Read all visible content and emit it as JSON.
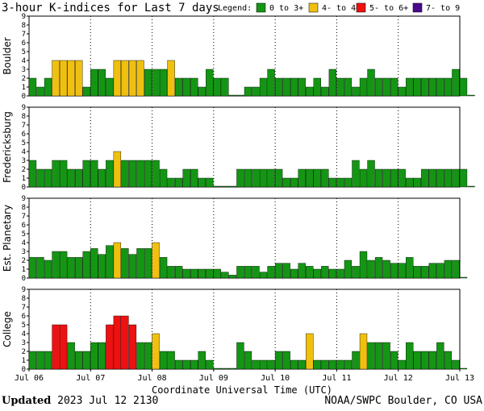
{
  "header": {
    "title": "3-hour K-indices for Last 7 days",
    "legend_label": "Legend:"
  },
  "legend": [
    {
      "label": "0 to 3+",
      "color": "#149614"
    },
    {
      "label": "4- to 4+",
      "color": "#f0c010"
    },
    {
      "label": "5- to 6+",
      "color": "#ee1111"
    },
    {
      "label": "7- to 9",
      "color": "#4b0a8c"
    }
  ],
  "footer": {
    "updated_word": "Updated",
    "updated_value": "2023 Jul 12 2130",
    "source": "NOAA/SWPC Boulder, CO USA"
  },
  "chart_data": [
    {
      "type": "bar",
      "panel": "Boulder",
      "ylabel": "Boulder",
      "ylim": [
        0,
        9
      ],
      "yticks": [
        "0",
        "1",
        "2",
        "3",
        "4",
        "5",
        "6",
        "7",
        "8",
        "9"
      ],
      "xlabel": "Coordinate Universal Time (UTC)",
      "xticks": [
        "Jul 06",
        "Jul 07",
        "Jul 08",
        "Jul 09",
        "Jul 10",
        "Jul 11",
        "Jul 12",
        "Jul 13"
      ],
      "values": [
        2,
        1,
        2,
        4,
        4,
        4,
        4,
        1,
        3,
        3,
        2,
        4,
        4,
        4,
        4,
        3,
        3,
        3,
        4,
        2,
        2,
        2,
        1,
        3,
        2,
        2,
        0,
        0,
        1,
        1,
        2,
        3,
        2,
        2,
        2,
        2,
        1,
        2,
        1,
        3,
        2,
        2,
        1,
        2,
        3,
        2,
        2,
        2,
        1,
        2,
        2,
        2,
        2,
        2,
        2,
        3,
        2,
        0
      ]
    },
    {
      "type": "bar",
      "panel": "Fredericksburg",
      "ylabel": "Fredericksburg",
      "ylim": [
        0,
        9
      ],
      "yticks": [
        "0",
        "1",
        "2",
        "3",
        "4",
        "5",
        "6",
        "7",
        "8",
        "9"
      ],
      "xlabel": "Coordinate Universal Time (UTC)",
      "xticks": [
        "Jul 06",
        "Jul 07",
        "Jul 08",
        "Jul 09",
        "Jul 10",
        "Jul 11",
        "Jul 12",
        "Jul 13"
      ],
      "values": [
        3,
        2,
        2,
        3,
        3,
        2,
        2,
        3,
        3,
        2,
        3,
        4,
        3,
        3,
        3,
        3,
        3,
        2,
        1,
        1,
        2,
        2,
        1,
        1,
        0,
        0,
        0,
        2,
        2,
        2,
        2,
        2,
        2,
        1,
        1,
        2,
        2,
        2,
        2,
        1,
        1,
        1,
        3,
        2,
        3,
        2,
        2,
        2,
        2,
        1,
        1,
        2,
        2,
        2,
        2,
        2,
        2,
        0
      ]
    },
    {
      "type": "bar",
      "panel": "Est. Planetary",
      "ylabel": "Est. Planetary",
      "ylim": [
        0,
        9
      ],
      "yticks": [
        "0",
        "1",
        "2",
        "3",
        "4",
        "5",
        "6",
        "7",
        "8",
        "9"
      ],
      "xlabel": "Coordinate Universal Time (UTC)",
      "xticks": [
        "Jul 06",
        "Jul 07",
        "Jul 08",
        "Jul 09",
        "Jul 10",
        "Jul 11",
        "Jul 12",
        "Jul 13"
      ],
      "values": [
        2.33,
        2.33,
        2,
        3,
        3,
        2.33,
        2.33,
        3,
        3.33,
        2.67,
        3.67,
        4,
        3.33,
        2.67,
        3.33,
        3.33,
        4,
        2.33,
        1.33,
        1.33,
        1,
        1,
        1,
        1,
        1,
        0.67,
        0.33,
        1.33,
        1.33,
        1.33,
        0.67,
        1.33,
        1.67,
        1.67,
        1,
        1.67,
        1.33,
        1,
        1.33,
        1,
        1,
        2,
        1.33,
        3,
        2,
        2.33,
        2,
        1.67,
        1.67,
        2.33,
        1.33,
        1.33,
        1.67,
        1.67,
        2,
        2,
        0
      ]
    },
    {
      "type": "bar",
      "panel": "College",
      "ylabel": "College",
      "ylim": [
        0,
        9
      ],
      "yticks": [
        "0",
        "1",
        "2",
        "3",
        "4",
        "5",
        "6",
        "7",
        "8",
        "9"
      ],
      "xlabel": "Coordinate Universal Time (UTC)",
      "xticks": [
        "Jul 06",
        "Jul 07",
        "Jul 08",
        "Jul 09",
        "Jul 10",
        "Jul 11",
        "Jul 12",
        "Jul 13"
      ],
      "values": [
        2,
        2,
        2,
        5,
        5,
        3,
        2,
        2,
        3,
        3,
        5,
        6,
        6,
        5,
        3,
        3,
        4,
        2,
        2,
        1,
        1,
        1,
        2,
        1,
        0,
        0,
        0,
        3,
        2,
        1,
        1,
        1,
        2,
        2,
        1,
        1,
        4,
        1,
        1,
        1,
        1,
        1,
        2,
        4,
        3,
        3,
        3,
        2,
        1,
        3,
        2,
        2,
        2,
        3,
        2,
        1,
        0
      ]
    }
  ]
}
